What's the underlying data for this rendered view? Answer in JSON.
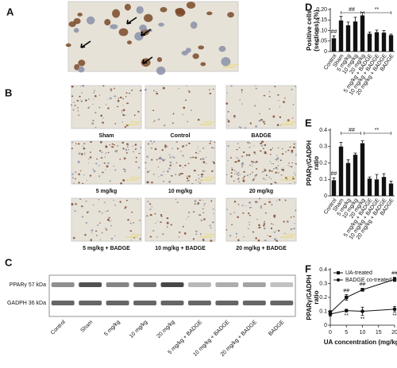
{
  "panel_labels": [
    "A",
    "B",
    "C",
    "D",
    "E",
    "F"
  ],
  "micrographs": {
    "captions": [
      "Sham",
      "Control",
      "BADGE",
      "5 mg/kg",
      "10 mg/kg",
      "20 mg/kg",
      "5 mg/kg + BADGE",
      "10 mg/kg + BADGE",
      "20 mg/kg + BADGE"
    ],
    "scale_bar": "100 μm"
  },
  "blot": {
    "bands": [
      "PPARγ 57 kDa",
      "GADPH 36 kDa"
    ],
    "lanes": [
      "Control",
      "Sham",
      "5 mg/kg",
      "10 mg/kg",
      "20 mg/kg",
      "5 mg/kg + BADGE",
      "10 mg/kg + BADGE",
      "20 mg/kg + BADGE",
      "BADGE"
    ]
  },
  "chart_data": [
    {
      "type": "bar",
      "ylabel": [
        "Positive cells",
        "(sections) (%)"
      ],
      "categories": [
        "Control",
        "Sham",
        "5 mg/kg",
        "10 mg/kg",
        "20 mg/kg",
        "5 mg/kg + BADGE",
        "10 mg/kg + BADGE",
        "20 mg/kg + BADGE",
        "BADGE"
      ],
      "values": [
        0.063,
        0.148,
        0.125,
        0.143,
        0.172,
        0.085,
        0.092,
        0.09,
        0.078
      ],
      "errors": [
        0.012,
        0.02,
        0.015,
        0.02,
        0.015,
        0.008,
        0.01,
        0.01,
        0.005
      ],
      "color": "#111111",
      "ylim": [
        0,
        0.2
      ],
      "yticks": [
        0,
        0.05,
        {
          "value": 0.1,
          "label": "0.10"
        },
        0.15,
        {
          "value": 0.2,
          "label": "0.20"
        }
      ],
      "annotations": [
        "##",
        "##",
        "**"
      ]
    },
    {
      "type": "bar",
      "ylabel": [
        "PPARγ/GADPH",
        "ratio"
      ],
      "categories": [
        "Control",
        "Sham",
        "5 mg/kg",
        "10 mg/kg",
        "20 mg/kg",
        "5 mg/kg + BADGE",
        "10 mg/kg + BADGE",
        "20 mg/kg + BADGE",
        "BADGE"
      ],
      "values": [
        0.095,
        0.3,
        0.2,
        0.25,
        0.32,
        0.105,
        0.1,
        0.115,
        0.075
      ],
      "errors": [
        0.015,
        0.025,
        0.02,
        0.01,
        0.015,
        0.01,
        0.03,
        0.02,
        0.015
      ],
      "color": "#111111",
      "ylim": [
        0,
        0.4
      ],
      "yticks": [
        0,
        0.1,
        0.2,
        0.3,
        0.4
      ],
      "annotations": [
        "##",
        "##",
        "**"
      ]
    },
    {
      "type": "line",
      "xlabel": "UA concentration (mg/kg)",
      "ylabel": [
        "PPARγ/GADPH",
        "ratio"
      ],
      "x": [
        0,
        5,
        10,
        20
      ],
      "series": [
        {
          "name": "UA-treated",
          "color": "#111111",
          "marker": "square",
          "values": [
            0.09,
            0.2,
            0.255,
            0.33
          ],
          "errors": [
            0.015,
            0.02,
            0.01,
            0.015
          ],
          "point_labels": [
            null,
            "##",
            "##",
            "##"
          ]
        },
        {
          "name": "BADGE co-treated",
          "color": "#111111",
          "marker": "circle",
          "values": [
            0.08,
            0.105,
            0.1,
            0.115
          ],
          "errors": [
            0.015,
            0.01,
            0.03,
            0.02
          ],
          "point_labels": [
            null,
            "**",
            "**",
            "**"
          ]
        }
      ],
      "xlim": [
        0,
        20
      ],
      "xticks": [
        0,
        5,
        10,
        15,
        20
      ],
      "ylim": [
        0,
        0.4
      ],
      "yticks": [
        0,
        0.1,
        0.2,
        0.3,
        0.4
      ],
      "legend": "upper left"
    }
  ]
}
